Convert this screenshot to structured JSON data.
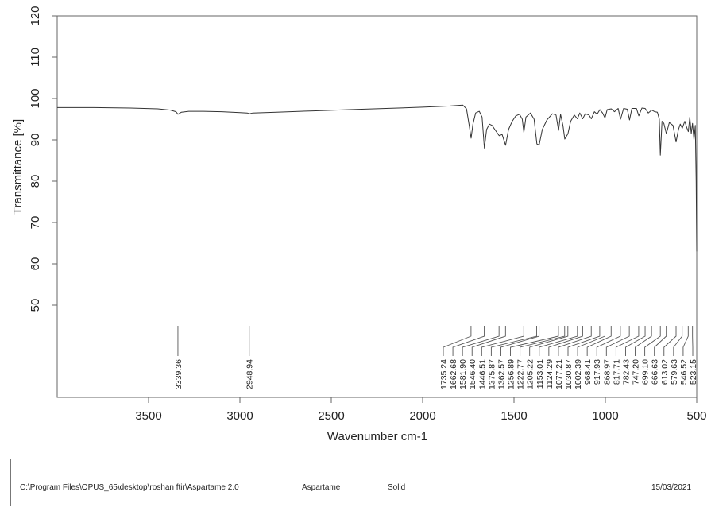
{
  "chart_data": {
    "type": "line",
    "title": "",
    "xlabel": "Wavenumber cm-1",
    "ylabel": "Transmittance [%]",
    "xlim": [
      4000,
      500
    ],
    "ylim": [
      30,
      120
    ],
    "x_ticks": [
      3500,
      3000,
      2500,
      2000,
      1500,
      1000,
      500
    ],
    "y_ticks": [
      50,
      60,
      70,
      80,
      90,
      100,
      110,
      120
    ],
    "grid": false,
    "legend": null,
    "series": [
      {
        "name": "Aspartame",
        "color": "#333333",
        "x": [
          4000,
          3800,
          3600,
          3450,
          3380,
          3350,
          3339,
          3320,
          3280,
          3200,
          3100,
          3000,
          2960,
          2948,
          2930,
          2800,
          2600,
          2400,
          2200,
          2000,
          1850,
          1780,
          1760,
          1745,
          1735,
          1725,
          1710,
          1690,
          1675,
          1662,
          1650,
          1635,
          1620,
          1600,
          1581,
          1565,
          1546,
          1530,
          1510,
          1490,
          1470,
          1455,
          1446,
          1435,
          1410,
          1390,
          1375,
          1362,
          1345,
          1320,
          1290,
          1270,
          1256,
          1245,
          1232,
          1222,
          1205,
          1190,
          1170,
          1153,
          1140,
          1124,
          1110,
          1090,
          1077,
          1060,
          1045,
          1030,
          1015,
          1002,
          990,
          968,
          950,
          930,
          917,
          900,
          880,
          868,
          855,
          830,
          817,
          800,
          782,
          765,
          747,
          730,
          715,
          705,
          699,
          690,
          680,
          666,
          650,
          630,
          613,
          600,
          590,
          579,
          565,
          555,
          546,
          538,
          530,
          523,
          515,
          508,
          503,
          500
        ],
        "y": [
          97.8,
          97.8,
          97.7,
          97.5,
          97.2,
          96.8,
          96.2,
          96.7,
          96.9,
          96.9,
          96.8,
          96.6,
          96.5,
          96.3,
          96.5,
          96.7,
          97.0,
          97.3,
          97.6,
          97.9,
          98.2,
          98.4,
          97.5,
          93.5,
          90.4,
          93.8,
          96.5,
          96.9,
          95.5,
          88.0,
          92.5,
          93.8,
          93.5,
          92.2,
          91.0,
          91.3,
          88.7,
          92.5,
          94.5,
          95.8,
          96.2,
          95.0,
          91.8,
          95.5,
          96.5,
          95.0,
          89.0,
          88.8,
          92.5,
          94.8,
          96.3,
          96.0,
          92.3,
          96.2,
          93.5,
          90.2,
          91.5,
          94.5,
          96.0,
          95.1,
          96.5,
          95.1,
          96.3,
          96.0,
          95.1,
          96.8,
          96.2,
          97.3,
          96.5,
          95.3,
          97.3,
          97.5,
          96.8,
          97.6,
          95.0,
          97.6,
          97.4,
          94.8,
          97.6,
          97.6,
          95.8,
          97.7,
          97.6,
          96.5,
          97.2,
          96.8,
          96.7,
          95.0,
          86.3,
          94.5,
          94.0,
          91.5,
          94.2,
          93.5,
          89.5,
          92.5,
          93.8,
          92.8,
          94.5,
          93.0,
          92.0,
          95.5,
          91.5,
          94.0,
          90.0,
          93.5,
          80.0,
          63.0
        ]
      }
    ],
    "peak_labels": [
      "3339.36",
      "2948.94",
      "1735.24",
      "1662.68",
      "1581.90",
      "1546.40",
      "1446.51",
      "1375.87",
      "1362.57",
      "1256.89",
      "1222.77",
      "1205.22",
      "1153.01",
      "1124.29",
      "1077.21",
      "1030.87",
      "1002.39",
      "968.41",
      "917.93",
      "868.97",
      "817.71",
      "782.43",
      "747.20",
      "699.10",
      "666.63",
      "613.02",
      "579.63",
      "546.52",
      "523.15"
    ]
  },
  "footer": {
    "file_path": "C:\\Program Files\\OPUS_65\\desktop\\roshan ftir\\Aspartame 2.0",
    "sample_name": "Aspartame",
    "sample_form": "Solid",
    "date": "15/03/2021"
  }
}
